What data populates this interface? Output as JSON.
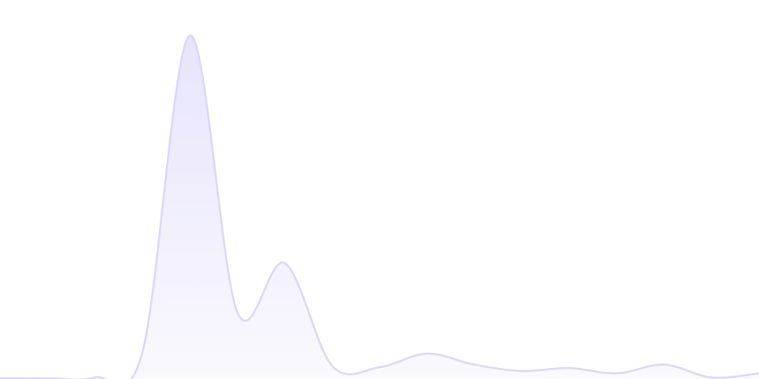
{
  "chart_data": {
    "type": "area",
    "x": [
      0,
      1,
      2,
      3,
      4,
      5,
      6,
      7,
      8,
      9,
      10,
      11,
      12,
      13,
      14,
      15,
      16
    ],
    "values": [
      0.2,
      0.2,
      0.4,
      6.9,
      90.6,
      17.7,
      30.6,
      3.5,
      3.1,
      6.7,
      3.8,
      2.1,
      2.9,
      1.5,
      3.8,
      0.4,
      1.5
    ],
    "color": "#dcd7f6",
    "fill": "#e6e3fb",
    "xlim": [
      0,
      16
    ],
    "ylim": [
      0,
      100
    ]
  }
}
